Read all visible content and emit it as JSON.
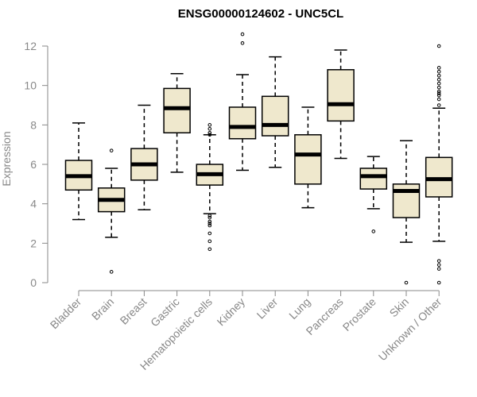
{
  "chart_data": {
    "type": "box",
    "title": "ENSG00000124602 - UNC5CL",
    "ylabel": "Expression",
    "xlabel": "",
    "ylim": [
      0,
      12.5
    ],
    "yticks": [
      0,
      2,
      4,
      6,
      8,
      10,
      12
    ],
    "grid": false,
    "box_fill": "#EFE8CD",
    "categories": [
      "Bladder",
      "Brain",
      "Breast",
      "Gastric",
      "Hematopoietic cells",
      "Kidney",
      "Liver",
      "Lung",
      "Pancreas",
      "Prostate",
      "Skin",
      "Unknown / Other"
    ],
    "boxes": [
      {
        "category": "Bladder",
        "whisker_low": 3.2,
        "q1": 4.7,
        "median": 5.4,
        "q3": 6.2,
        "whisker_high": 8.1,
        "outliers": []
      },
      {
        "category": "Brain",
        "whisker_low": 2.3,
        "q1": 3.6,
        "median": 4.2,
        "q3": 4.8,
        "whisker_high": 5.8,
        "outliers": [
          6.7,
          0.55
        ]
      },
      {
        "category": "Breast",
        "whisker_low": 3.7,
        "q1": 5.2,
        "median": 6.0,
        "q3": 6.8,
        "whisker_high": 9.0,
        "outliers": []
      },
      {
        "category": "Gastric",
        "whisker_low": 5.6,
        "q1": 7.6,
        "median": 8.85,
        "q3": 9.85,
        "whisker_high": 10.6,
        "outliers": []
      },
      {
        "category": "Hematopoietic cells",
        "whisker_low": 3.5,
        "q1": 4.95,
        "median": 5.5,
        "q3": 6.0,
        "whisker_high": 7.5,
        "outliers": [
          8.0,
          7.8,
          7.6,
          7.5,
          3.4,
          3.3,
          3.1,
          3.0,
          2.9,
          2.5,
          2.1,
          1.7
        ]
      },
      {
        "category": "Kidney",
        "whisker_low": 5.7,
        "q1": 7.3,
        "median": 7.9,
        "q3": 8.9,
        "whisker_high": 10.55,
        "outliers": [
          12.6,
          12.15
        ]
      },
      {
        "category": "Liver",
        "whisker_low": 5.85,
        "q1": 7.45,
        "median": 8.0,
        "q3": 9.45,
        "whisker_high": 11.45,
        "outliers": []
      },
      {
        "category": "Lung",
        "whisker_low": 3.8,
        "q1": 5.0,
        "median": 6.5,
        "q3": 7.5,
        "whisker_high": 8.9,
        "outliers": []
      },
      {
        "category": "Pancreas",
        "whisker_low": 6.3,
        "q1": 8.2,
        "median": 9.05,
        "q3": 10.8,
        "whisker_high": 11.8,
        "outliers": []
      },
      {
        "category": "Prostate",
        "whisker_low": 3.75,
        "q1": 4.75,
        "median": 5.4,
        "q3": 5.8,
        "whisker_high": 6.4,
        "outliers": [
          2.6
        ]
      },
      {
        "category": "Skin",
        "whisker_low": 2.05,
        "q1": 3.3,
        "median": 4.65,
        "q3": 5.0,
        "whisker_high": 7.2,
        "outliers": [
          0.0
        ]
      },
      {
        "category": "Unknown / Other",
        "whisker_low": 2.1,
        "q1": 4.35,
        "median": 5.25,
        "q3": 6.35,
        "whisker_high": 8.85,
        "outliers": [
          12.0,
          10.9,
          10.7,
          10.5,
          10.3,
          10.1,
          9.9,
          9.7,
          9.6,
          9.5,
          9.3,
          9.0,
          1.1,
          0.9,
          0.7,
          0.0
        ]
      }
    ]
  }
}
